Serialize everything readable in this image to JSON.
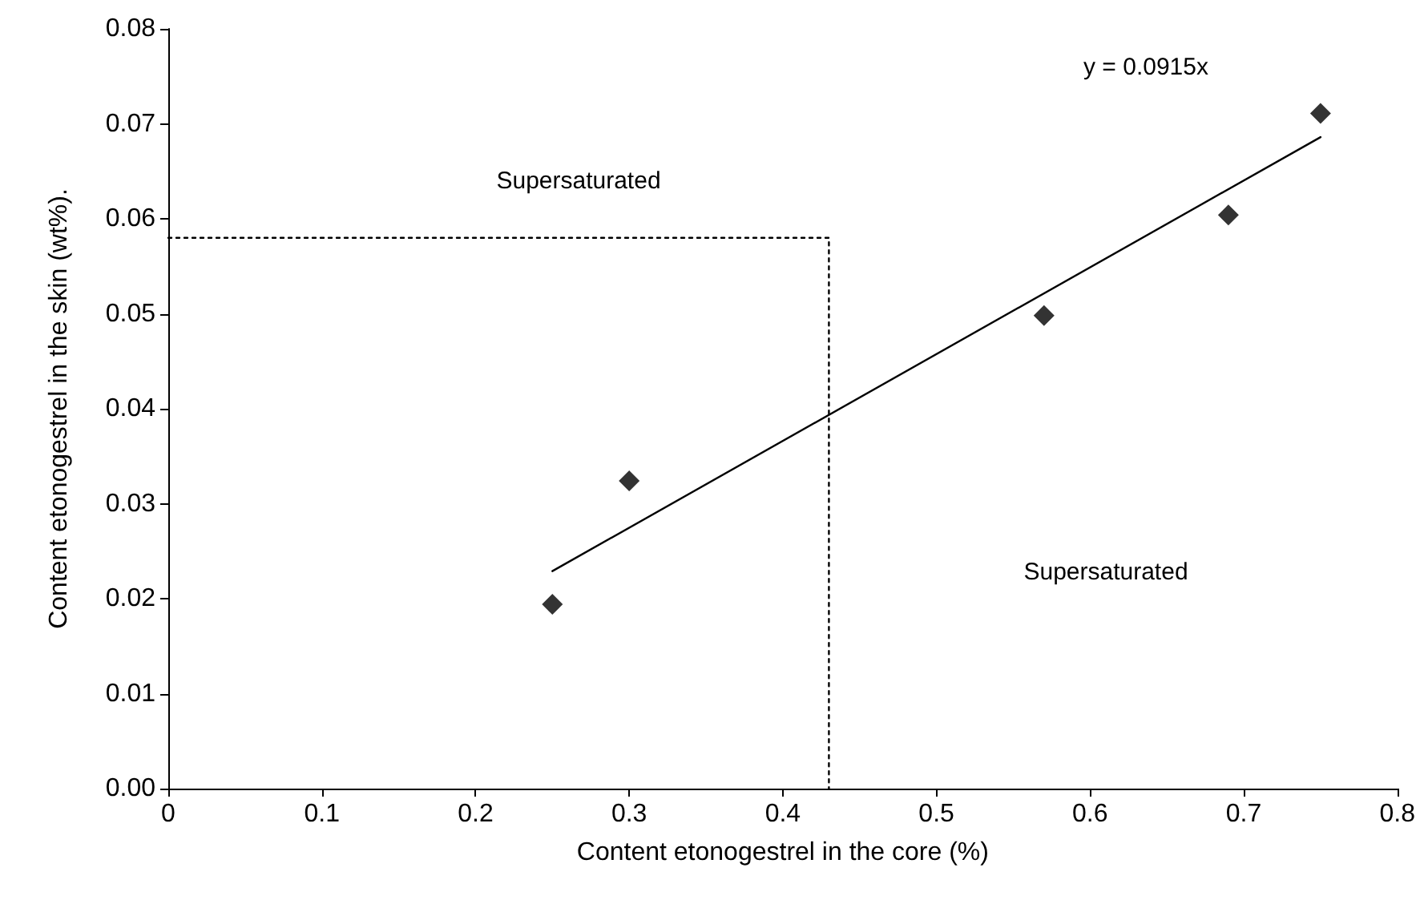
{
  "chart_data": {
    "type": "scatter",
    "xlabel": "Content etonogestrel in the core (%)",
    "ylabel": "Content etonogestrel in the skin (wt%).",
    "grid": false,
    "marker": "diamond",
    "xlim": [
      0,
      0.8
    ],
    "xticks": [
      0,
      0.1,
      0.2,
      0.3,
      0.4,
      0.5,
      0.6,
      0.7,
      0.8
    ],
    "ylim": [
      0,
      0.08
    ],
    "yticks": [
      {
        "value": 0,
        "label": "0.00"
      },
      {
        "value": 0.01,
        "label": "0.01"
      },
      {
        "value": 0.02,
        "label": "0.02"
      },
      {
        "value": 0.03,
        "label": "0.03"
      },
      {
        "value": 0.04,
        "label": "0.04"
      },
      {
        "value": 0.05,
        "label": "0.05"
      },
      {
        "value": 0.06,
        "label": "0.06"
      },
      {
        "value": 0.07,
        "label": "0.07"
      },
      {
        "value": 0.08,
        "label": "0.08"
      }
    ],
    "series": [
      {
        "color": "#000000",
        "x": [
          0.25,
          0.3,
          0.57,
          0.69,
          0.75
        ],
        "values": [
          0.0194,
          0.0324,
          0.0498,
          0.0604,
          0.0711
        ]
      },
      {
        "type": "line",
        "color": "#000000",
        "marker": "none",
        "line_style": "solid",
        "x": [
          0.25,
          0.75
        ],
        "values": [
          0.0229,
          0.0686
        ]
      },
      {
        "type": "line",
        "color": "#000000",
        "marker": "none",
        "line_style": "dotted",
        "x": [
          0,
          0.43,
          0.43
        ],
        "values": [
          0.058,
          0.058,
          0
        ]
      }
    ],
    "annotations": [
      "y = 0.0915x",
      "Supersaturated",
      "Supersaturated"
    ]
  }
}
